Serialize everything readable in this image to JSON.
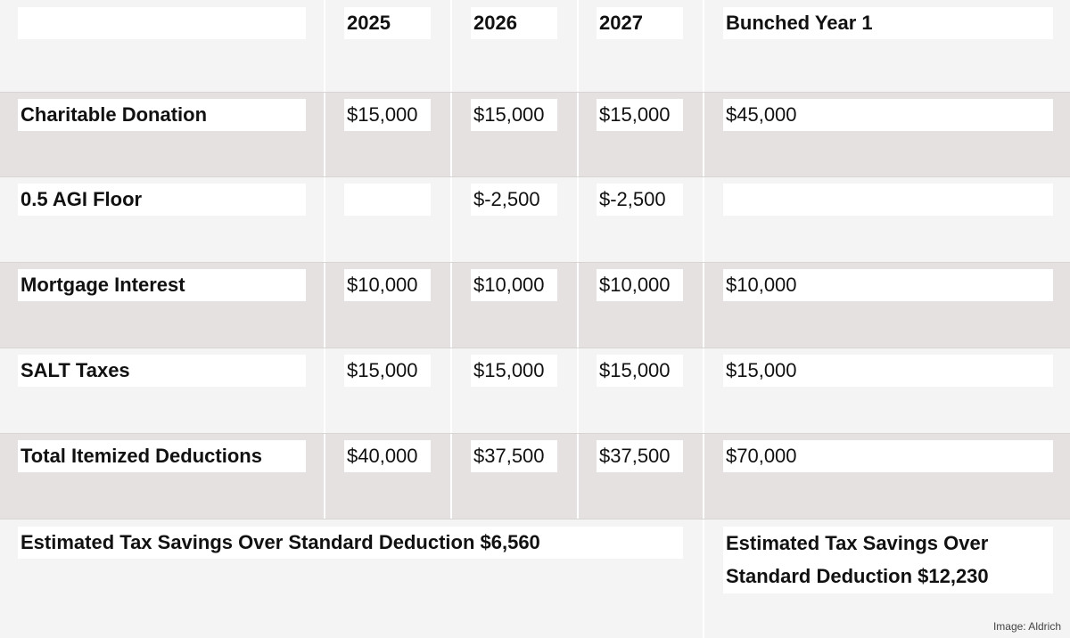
{
  "table": {
    "columns": [
      "2025",
      "2026",
      "2027",
      "Bunched Year 1"
    ],
    "rows": [
      {
        "label": "Charitable Donation",
        "cells": [
          "$15,000",
          "$15,000",
          "$15,000",
          "$45,000"
        ]
      },
      {
        "label": "0.5 AGI Floor",
        "cells": [
          null,
          "$-2,500",
          "$-2,500",
          null
        ]
      },
      {
        "label": "Mortgage Interest",
        "cells": [
          "$10,000",
          "$10,000",
          "$10,000",
          "$10,000"
        ]
      },
      {
        "label": "SALT Taxes",
        "cells": [
          "$15,000",
          "$15,000",
          "$15,000",
          "$15,000"
        ]
      },
      {
        "label": "Total Itemized Deductions",
        "cells": [
          "$40,000",
          "$37,500",
          "$37,500",
          "$70,000"
        ]
      }
    ]
  },
  "footer": {
    "left": "Estimated Tax Savings Over Standard Deduction $6,560",
    "right": "Estimated Tax Savings Over Standard Deduction $12,230"
  },
  "credit": "Image: Aldrich"
}
